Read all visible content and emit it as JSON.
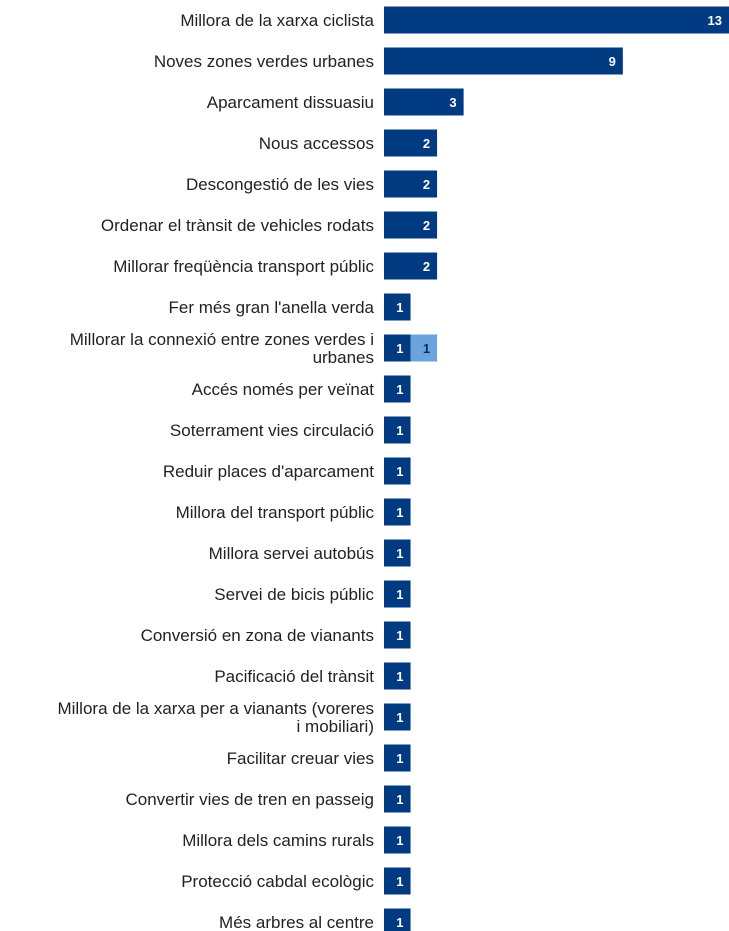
{
  "chart_data": {
    "type": "bar",
    "orientation": "horizontal",
    "stacked": true,
    "title": "",
    "xlabel": "",
    "ylabel": "",
    "grid": false,
    "legend": "none",
    "xlim": [
      0,
      13
    ],
    "categories": [
      [
        "Millora de la xarxa ciclista"
      ],
      [
        "Noves zones verdes urbanes"
      ],
      [
        "Aparcament dissuasiu"
      ],
      [
        "Nous accessos"
      ],
      [
        "Descongestió de les vies"
      ],
      [
        "Ordenar el trànsit de vehicles rodats"
      ],
      [
        "Millorar freqüència transport públic"
      ],
      [
        "Fer més gran l'anella verda"
      ],
      [
        "Millorar la connexió entre zones verdes i",
        "urbanes"
      ],
      [
        "Accés només per veïnat"
      ],
      [
        "Soterrament vies circulació"
      ],
      [
        "Reduir places d'aparcament"
      ],
      [
        "Millora del transport públic"
      ],
      [
        "Millora servei autobús"
      ],
      [
        "Servei de bicis públic"
      ],
      [
        "Conversió en zona de vianants"
      ],
      [
        "Pacificació del trànsit"
      ],
      [
        "Millora de la xarxa per a vianants (voreres",
        "i mobiliari)"
      ],
      [
        "Facilitar creuar vies"
      ],
      [
        "Convertir vies de tren en passeig"
      ],
      [
        "Millora dels camins rurals"
      ],
      [
        "Protecció cabdal ecològic"
      ],
      [
        "Més arbres al centre"
      ]
    ],
    "series": [
      {
        "color": "#003a80",
        "label_color": "#ffffff",
        "values": [
          13,
          9,
          3,
          2,
          2,
          2,
          2,
          1,
          1,
          1,
          1,
          1,
          1,
          1,
          1,
          1,
          1,
          1,
          1,
          1,
          1,
          1,
          1
        ]
      },
      {
        "color": "#6aa4df",
        "label_color": "#0d2a52",
        "values": [
          0,
          0,
          0,
          0,
          0,
          0,
          0,
          0,
          1,
          0,
          0,
          0,
          0,
          0,
          0,
          0,
          0,
          0,
          0,
          0,
          0,
          0,
          0
        ]
      }
    ]
  }
}
